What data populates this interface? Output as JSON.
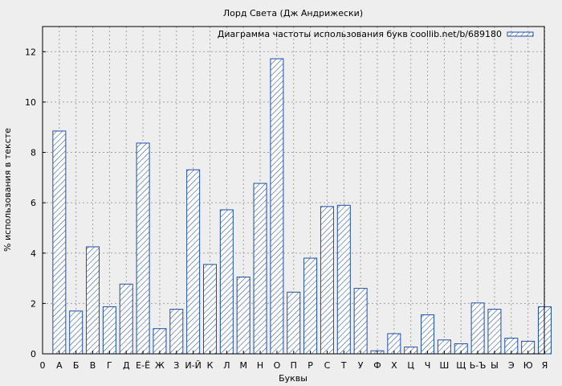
{
  "chart_data": {
    "type": "bar",
    "title": "Лорд Света (Дж Андрижески)",
    "xlabel": "Буквы",
    "ylabel": "% использования в тексте",
    "legend": "Диаграмма частоты использования букв coollib.net/b/689180",
    "legend_position": "top-right",
    "grid": true,
    "ylim": [
      0,
      13
    ],
    "yticks": [
      0,
      2,
      4,
      6,
      8,
      10,
      12
    ],
    "x_origin_label": "0",
    "categories": [
      "А",
      "Б",
      "В",
      "Г",
      "Д",
      "Е-Ё",
      "Ж",
      "З",
      "И-Й",
      "К",
      "Л",
      "М",
      "Н",
      "О",
      "П",
      "Р",
      "С",
      "Т",
      "У",
      "Ф",
      "Х",
      "Ц",
      "Ч",
      "Ш",
      "Щ",
      "Ь-Ъ",
      "Ы",
      "Э",
      "Ю",
      "Я"
    ],
    "values": [
      8.85,
      1.7,
      4.25,
      1.87,
      2.77,
      8.37,
      1.0,
      1.77,
      7.31,
      3.55,
      5.72,
      3.05,
      6.77,
      11.72,
      2.45,
      3.8,
      5.85,
      5.9,
      2.6,
      0.12,
      0.8,
      0.27,
      1.55,
      0.55,
      0.4,
      2.02,
      1.77,
      0.62,
      0.5,
      1.87
    ],
    "colors": {
      "bar_stroke": "#1f4ea8",
      "hatch": "#1f4ea8",
      "grid": "#a0a0a0",
      "plot_bg": "#eeeeee"
    }
  }
}
